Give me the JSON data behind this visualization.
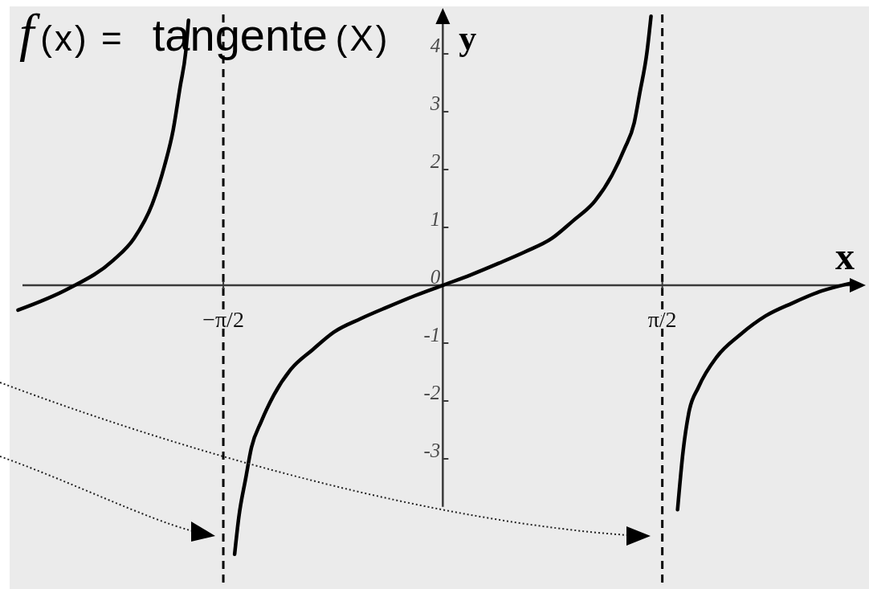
{
  "chart_data": {
    "type": "line",
    "title": "f(x) = tangente(X)",
    "xlabel": "x",
    "ylabel": "y",
    "xlim": [
      -3.1,
      3.05
    ],
    "ylim": [
      -5.25,
      4.82
    ],
    "xticks": [
      {
        "value": -1.5708,
        "label": "−π/2"
      },
      {
        "value": 1.5708,
        "label": "π/2"
      }
    ],
    "yticks": [
      -3,
      -2,
      -1,
      0,
      1,
      2,
      3,
      4
    ],
    "ref_lines": [
      {
        "axis": "x",
        "value": -1.5708,
        "color": "#000000",
        "line_style": "dashed"
      },
      {
        "axis": "x",
        "value": 1.5708,
        "color": "#000000",
        "line_style": "dashed"
      }
    ],
    "series": [
      {
        "color": "#000000",
        "x": [
          -3.04,
          -2.68,
          -2.36,
          -2.21,
          -2.08,
          -1.99,
          -1.93,
          -1.88,
          -1.84,
          -1.82,
          -1.65,
          -1.49,
          -1.46,
          -1.41,
          -1.37,
          -1.3,
          -1.21,
          -1.09,
          -0.93,
          -0.78,
          -0.59,
          -0.4,
          -0.2,
          0,
          0.2,
          0.4,
          0.59,
          0.78,
          0.93,
          1.09,
          1.21,
          1.3,
          1.37,
          1.41,
          1.46,
          1.49,
          1.6,
          1.68,
          1.72,
          1.76,
          1.83,
          1.96,
          2.13,
          2.31,
          2.5,
          2.71,
          2.91
        ],
        "values": [
          -0.43,
          -0.06,
          0.43,
          0.81,
          1.4,
          2.08,
          2.68,
          3.43,
          4.03,
          4.58,
          null,
          -4.65,
          -4.01,
          -3.33,
          -2.81,
          -2.36,
          -1.9,
          -1.46,
          -1.11,
          -0.81,
          -0.58,
          -0.38,
          -0.18,
          0,
          0.18,
          0.38,
          0.58,
          0.81,
          1.11,
          1.46,
          1.9,
          2.36,
          2.81,
          3.33,
          4.01,
          4.65,
          null,
          -3.88,
          -2.86,
          -2.21,
          -1.76,
          -1.24,
          -0.85,
          -0.53,
          -0.31,
          -0.1,
          0.03
        ]
      }
    ]
  }
}
